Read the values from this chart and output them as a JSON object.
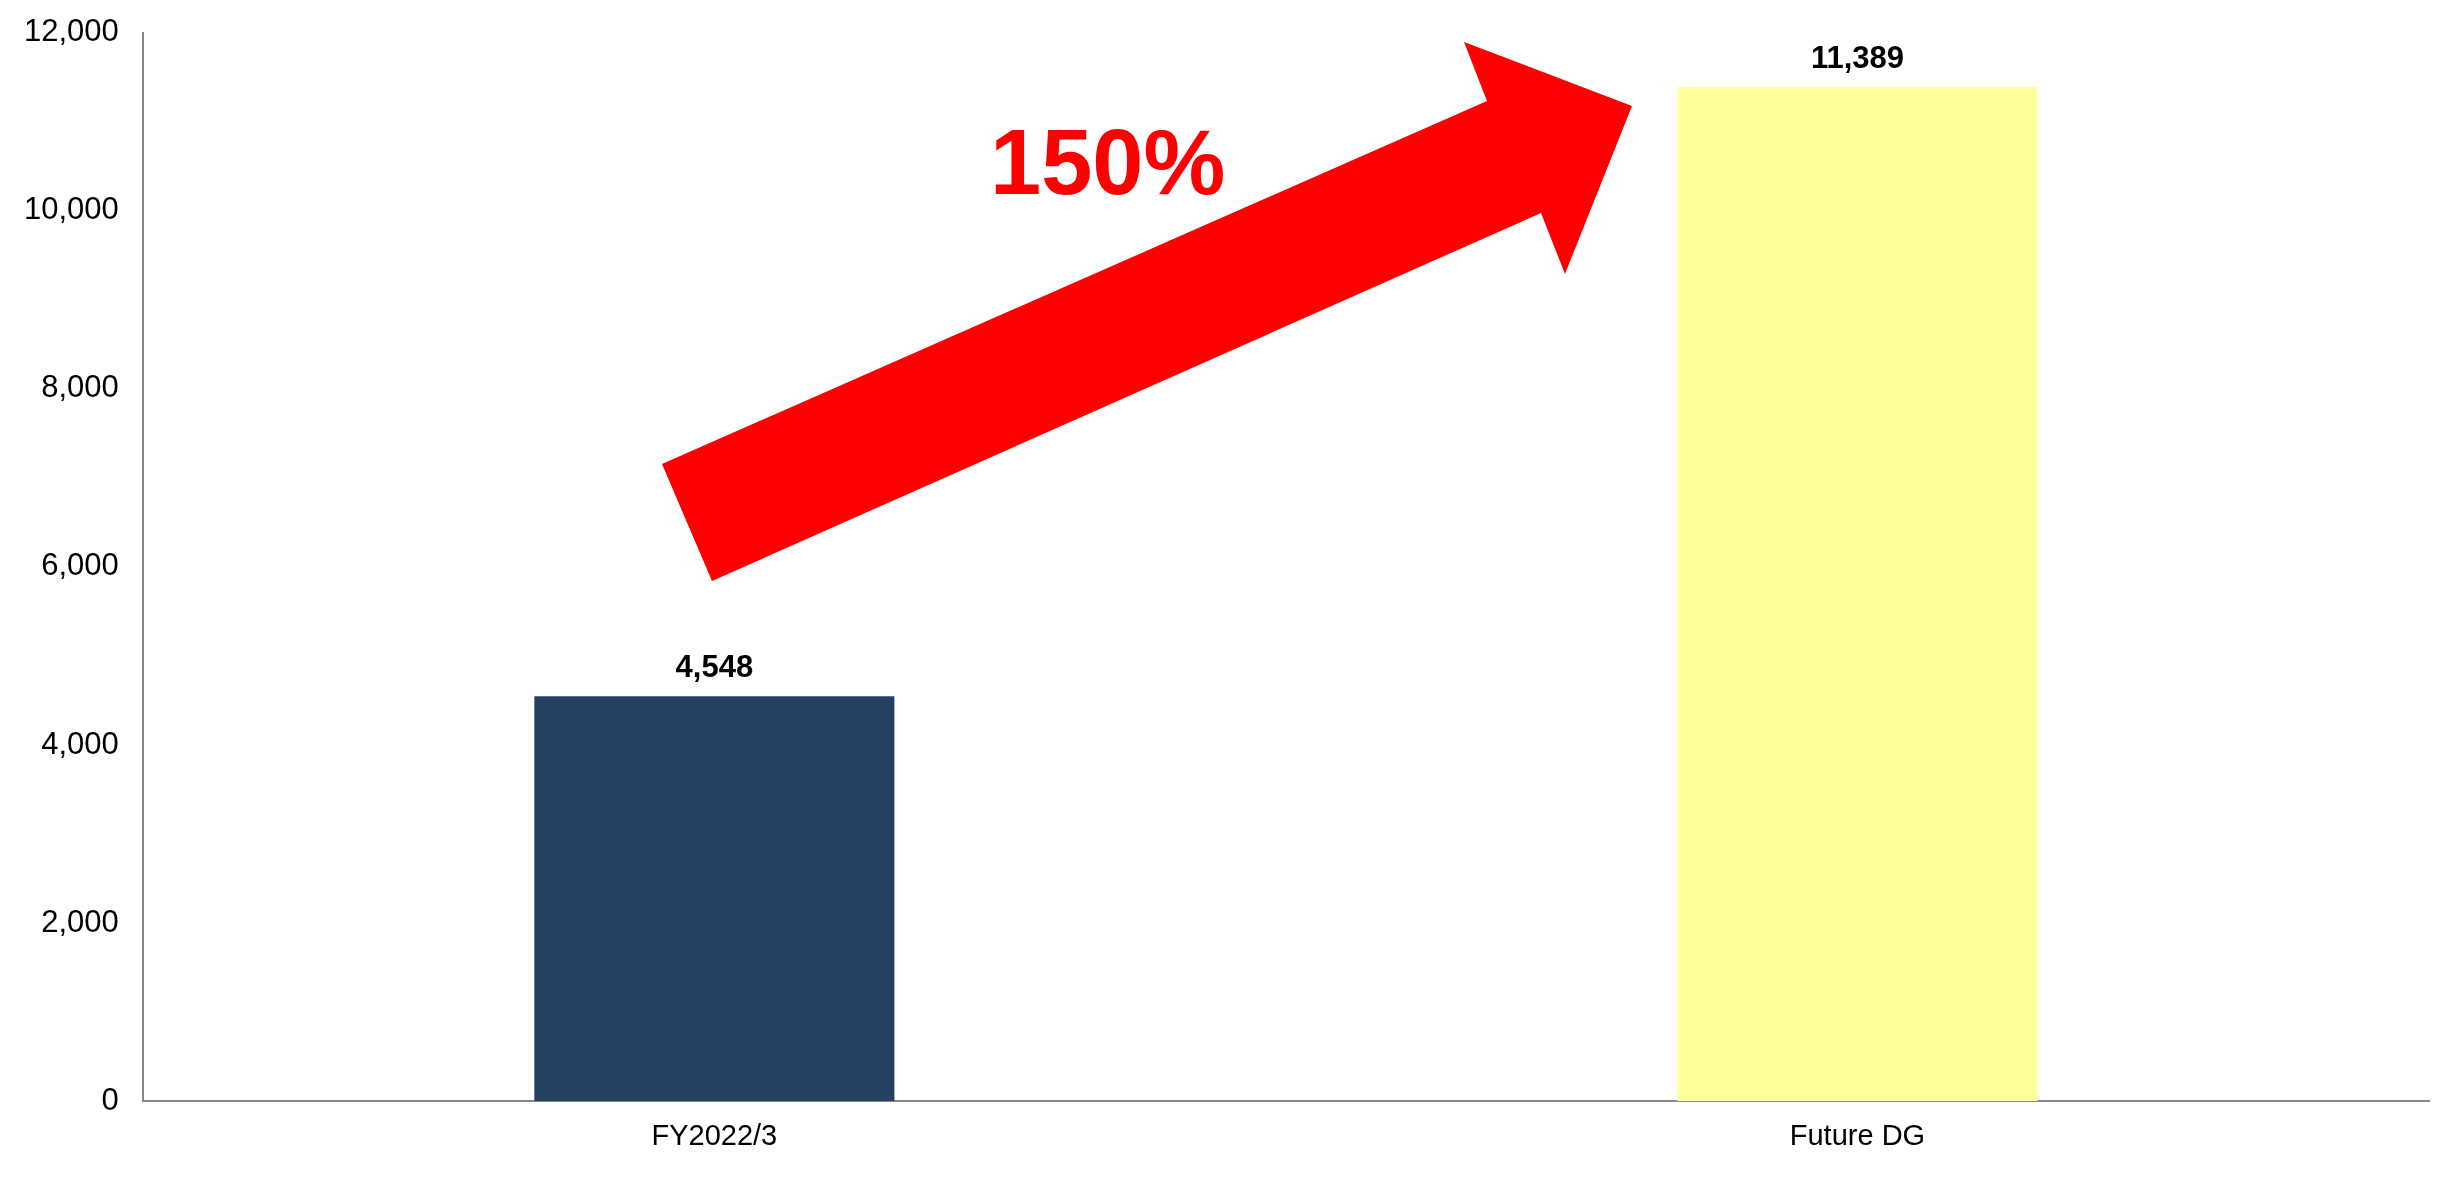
{
  "chart_data": {
    "type": "bar",
    "categories": [
      "FY2022/3",
      "Future DG"
    ],
    "values": [
      4548,
      11389
    ],
    "colors": [
      "#264061",
      "#ffff99"
    ],
    "value_labels": [
      "4,548",
      "11,389"
    ],
    "ylim": [
      0,
      12000
    ],
    "yticks": [
      0,
      {
        "value": 2000,
        "label": "2,000"
      },
      {
        "value": 4000,
        "label": "4,000"
      },
      {
        "value": 6000,
        "label": "6,000"
      },
      {
        "value": 8000,
        "label": "8,000"
      },
      {
        "value": 10000,
        "label": "10,000"
      },
      {
        "value": 12000,
        "label": "12,000"
      }
    ],
    "grid": false,
    "legend": false,
    "annotations": [
      "150%"
    ]
  }
}
